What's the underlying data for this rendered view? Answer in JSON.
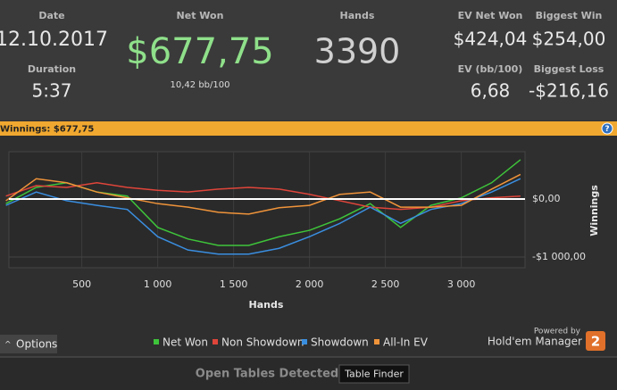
{
  "stats": [
    {
      "label": "Date",
      "value": "12.10.2017"
    },
    {
      "label": "Duration",
      "value": "5:37"
    },
    {
      "label": "Net Won",
      "value": "$677,75",
      "sub": "10,42 bb/100"
    },
    {
      "label": "Hands",
      "value": "3390"
    },
    {
      "label": "EV Net Won",
      "value": "$424,04"
    },
    {
      "label": "Biggest Win",
      "value": "$254,00"
    },
    {
      "label": "EV (bb/100)",
      "value": "6,68"
    },
    {
      "label": "Biggest Loss",
      "value": "-$216,16"
    }
  ],
  "help": "?",
  "options": "Options",
  "powered_by": "Powered by",
  "brand": "Hold'em Manager",
  "brand_version": "2",
  "status": "Open Tables Detected",
  "table_finder": "Table Finder",
  "chart_data": {
    "type": "line",
    "title": "Winnings: $677,75",
    "x_label": "Hands",
    "y_label": "Winnings",
    "x": [
      0,
      200,
      400,
      600,
      800,
      1000,
      1200,
      1400,
      1600,
      1800,
      2000,
      2200,
      2400,
      2600,
      2800,
      3000,
      3200,
      3390
    ],
    "series": [
      {
        "name": "Net Won",
        "color": "#3ec43a",
        "values": [
          -80,
          200,
          280,
          120,
          50,
          -490,
          -690,
          -800,
          -800,
          -650,
          -540,
          -340,
          -80,
          -490,
          -110,
          20,
          280,
          677.75
        ]
      },
      {
        "name": "Non Showdown",
        "color": "#e0453a",
        "values": [
          50,
          230,
          200,
          280,
          200,
          150,
          120,
          170,
          200,
          170,
          80,
          -30,
          -140,
          -180,
          -140,
          -30,
          20,
          50
        ]
      },
      {
        "name": "Showdown",
        "color": "#3a8ee0",
        "values": [
          -110,
          120,
          -30,
          -110,
          -180,
          -650,
          -880,
          -950,
          -950,
          -850,
          -650,
          -420,
          -140,
          -420,
          -180,
          -80,
          120,
          350
        ]
      },
      {
        "name": "All-In EV",
        "color": "#f0943a",
        "values": [
          -30,
          350,
          280,
          120,
          20,
          -80,
          -140,
          -230,
          -260,
          -150,
          -110,
          80,
          120,
          -140,
          -140,
          -110,
          170,
          424.04
        ]
      }
    ],
    "xlim": [
      20,
      3420
    ],
    "ylim": [
      -1185,
      815
    ],
    "xticks": [
      500,
      {
        "value": 1000,
        "label": "1 000"
      },
      {
        "value": 1500,
        "label": "1 500"
      },
      {
        "value": 2000,
        "label": "2 000"
      },
      {
        "value": 2500,
        "label": "2 500"
      },
      {
        "value": 3000,
        "label": "3 000"
      }
    ],
    "yticks": [
      {
        "value": 0,
        "label": "$0,00"
      },
      {
        "value": -1000,
        "label": "-$1 000,00"
      }
    ],
    "grid": true
  }
}
